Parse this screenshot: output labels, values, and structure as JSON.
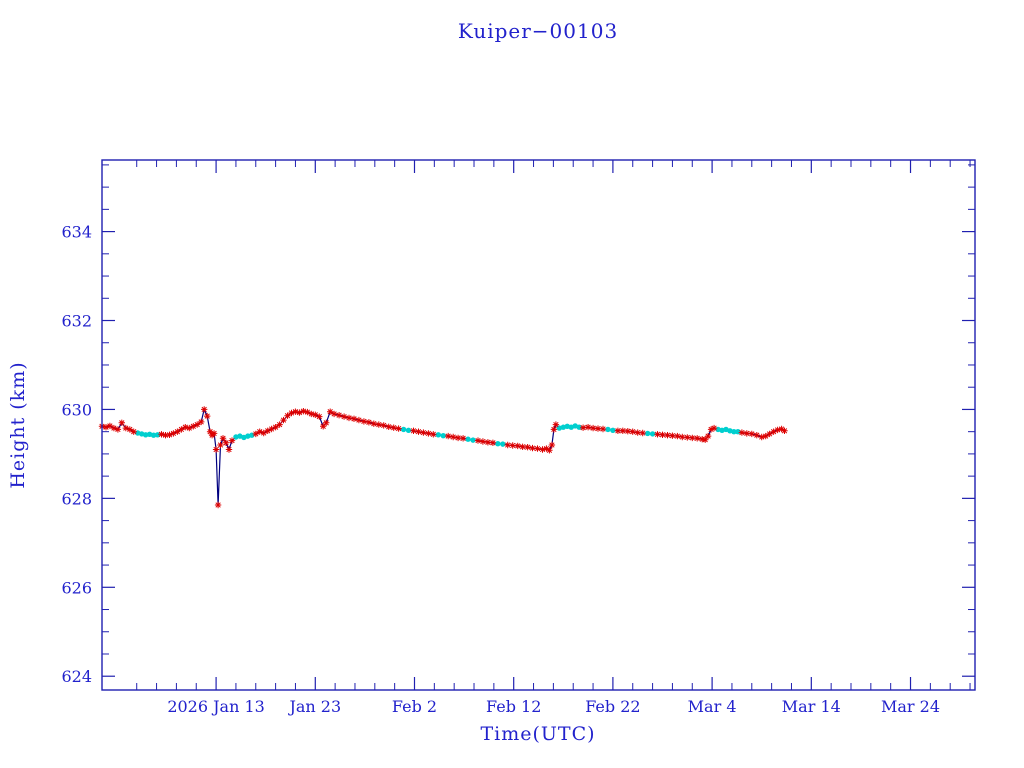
{
  "title": "Kuiper−00103",
  "colors": {
    "background": "#ffffff",
    "text": "#2222cc",
    "frame": "#2020b0",
    "line": "#000080",
    "marker_red": "#dd0000",
    "marker_cyan": "#00cfcf"
  },
  "chart_data": {
    "type": "line",
    "title": "Kuiper−00103",
    "xlabel": "Time(UTC)",
    "ylabel": "Height (km)",
    "xlim": [
      1.5,
      89.5
    ],
    "ylim": [
      623.69,
      635.61
    ],
    "grid": false,
    "legend": "none",
    "x_ticks": [
      {
        "value": 13,
        "label": "2026 Jan 13"
      },
      {
        "value": 23,
        "label": "Jan 23"
      },
      {
        "value": 33,
        "label": "Feb 2"
      },
      {
        "value": 43,
        "label": "Feb 12"
      },
      {
        "value": 53,
        "label": "Feb 22"
      },
      {
        "value": 63,
        "label": "Mar 4"
      },
      {
        "value": 73,
        "label": "Mar 14"
      },
      {
        "value": 83,
        "label": "Mar 24"
      }
    ],
    "y_ticks": [
      {
        "value": 624,
        "label": "624"
      },
      {
        "value": 626,
        "label": "626"
      },
      {
        "value": 628,
        "label": "628"
      },
      {
        "value": 630,
        "label": "630"
      },
      {
        "value": 632,
        "label": "632"
      },
      {
        "value": 634,
        "label": "634"
      }
    ],
    "series": [
      {
        "name": "height-line",
        "type": "line",
        "color": "#000080"
      },
      {
        "name": "red-asterisk-markers",
        "type": "marker",
        "color": "#dd0000"
      },
      {
        "name": "cyan-dot-markers",
        "type": "marker",
        "color": "#00cfcf"
      }
    ],
    "points_format": "[day_of_year_2026 (Jan 1 = 1), height_km, marker: r = red asterisk, c = cyan dot]",
    "points": [
      [
        1.5,
        629.62,
        "r"
      ],
      [
        1.9,
        629.6,
        "r"
      ],
      [
        2.3,
        629.63,
        "r"
      ],
      [
        2.7,
        629.58,
        "r"
      ],
      [
        3.1,
        629.55,
        "r"
      ],
      [
        3.5,
        629.7,
        "r"
      ],
      [
        3.9,
        629.58,
        "r"
      ],
      [
        4.3,
        629.55,
        "r"
      ],
      [
        4.7,
        629.5,
        "r"
      ],
      [
        5.1,
        629.47,
        "c"
      ],
      [
        5.5,
        629.45,
        "c"
      ],
      [
        5.9,
        629.43,
        "c"
      ],
      [
        6.3,
        629.44,
        "c"
      ],
      [
        6.7,
        629.42,
        "c"
      ],
      [
        7.1,
        629.43,
        "c"
      ],
      [
        7.5,
        629.44,
        "r"
      ],
      [
        7.9,
        629.42,
        "r"
      ],
      [
        8.3,
        629.43,
        "r"
      ],
      [
        8.7,
        629.46,
        "r"
      ],
      [
        9.1,
        629.5,
        "r"
      ],
      [
        9.5,
        629.55,
        "r"
      ],
      [
        9.9,
        629.6,
        "r"
      ],
      [
        10.3,
        629.58,
        "r"
      ],
      [
        10.7,
        629.62,
        "r"
      ],
      [
        11.1,
        629.66,
        "r"
      ],
      [
        11.5,
        629.72,
        "r"
      ],
      [
        11.8,
        630.0,
        "r"
      ],
      [
        12.1,
        629.85,
        "r"
      ],
      [
        12.4,
        629.5,
        "r"
      ],
      [
        12.6,
        629.42,
        "r"
      ],
      [
        12.8,
        629.46,
        "r"
      ],
      [
        13.0,
        629.1,
        "r"
      ],
      [
        13.2,
        627.85,
        "r"
      ],
      [
        13.45,
        629.2,
        "r"
      ],
      [
        13.7,
        629.35,
        "r"
      ],
      [
        14.0,
        629.25,
        "r"
      ],
      [
        14.3,
        629.1,
        "r"
      ],
      [
        14.6,
        629.3,
        "r"
      ],
      [
        15.0,
        629.38,
        "c"
      ],
      [
        15.4,
        629.4,
        "c"
      ],
      [
        15.8,
        629.37,
        "c"
      ],
      [
        16.2,
        629.4,
        "c"
      ],
      [
        16.6,
        629.42,
        "c"
      ],
      [
        17.0,
        629.45,
        "r"
      ],
      [
        17.4,
        629.5,
        "r"
      ],
      [
        17.8,
        629.47,
        "r"
      ],
      [
        18.2,
        629.52,
        "r"
      ],
      [
        18.6,
        629.56,
        "r"
      ],
      [
        19.0,
        629.6,
        "r"
      ],
      [
        19.4,
        629.66,
        "r"
      ],
      [
        19.8,
        629.76,
        "r"
      ],
      [
        20.2,
        629.86,
        "r"
      ],
      [
        20.6,
        629.92,
        "r"
      ],
      [
        21.0,
        629.95,
        "r"
      ],
      [
        21.4,
        629.93,
        "r"
      ],
      [
        21.8,
        629.96,
        "r"
      ],
      [
        22.2,
        629.94,
        "r"
      ],
      [
        22.6,
        629.9,
        "r"
      ],
      [
        23.0,
        629.88,
        "r"
      ],
      [
        23.4,
        629.84,
        "r"
      ],
      [
        23.8,
        629.62,
        "r"
      ],
      [
        24.1,
        629.7,
        "r"
      ],
      [
        24.5,
        629.95,
        "r"
      ],
      [
        24.9,
        629.9,
        "r"
      ],
      [
        25.4,
        629.87,
        "r"
      ],
      [
        25.9,
        629.84,
        "r"
      ],
      [
        26.4,
        629.81,
        "r"
      ],
      [
        26.9,
        629.79,
        "r"
      ],
      [
        27.4,
        629.76,
        "r"
      ],
      [
        27.9,
        629.73,
        "r"
      ],
      [
        28.4,
        629.71,
        "r"
      ],
      [
        28.9,
        629.68,
        "r"
      ],
      [
        29.4,
        629.66,
        "r"
      ],
      [
        29.9,
        629.64,
        "r"
      ],
      [
        30.4,
        629.61,
        "r"
      ],
      [
        30.9,
        629.59,
        "r"
      ],
      [
        31.4,
        629.57,
        "r"
      ],
      [
        31.9,
        629.55,
        "c"
      ],
      [
        32.4,
        629.53,
        "c"
      ],
      [
        32.9,
        629.52,
        "r"
      ],
      [
        33.4,
        629.5,
        "r"
      ],
      [
        33.9,
        629.48,
        "r"
      ],
      [
        34.4,
        629.46,
        "r"
      ],
      [
        34.9,
        629.44,
        "r"
      ],
      [
        35.4,
        629.43,
        "c"
      ],
      [
        35.9,
        629.41,
        "c"
      ],
      [
        36.4,
        629.4,
        "r"
      ],
      [
        36.9,
        629.38,
        "r"
      ],
      [
        37.4,
        629.36,
        "r"
      ],
      [
        37.9,
        629.35,
        "r"
      ],
      [
        38.4,
        629.33,
        "c"
      ],
      [
        38.9,
        629.31,
        "c"
      ],
      [
        39.4,
        629.3,
        "r"
      ],
      [
        39.9,
        629.28,
        "r"
      ],
      [
        40.4,
        629.26,
        "r"
      ],
      [
        40.9,
        629.25,
        "r"
      ],
      [
        41.4,
        629.23,
        "c"
      ],
      [
        41.9,
        629.22,
        "c"
      ],
      [
        42.4,
        629.2,
        "r"
      ],
      [
        42.9,
        629.19,
        "r"
      ],
      [
        43.4,
        629.18,
        "r"
      ],
      [
        43.9,
        629.16,
        "r"
      ],
      [
        44.4,
        629.15,
        "r"
      ],
      [
        44.9,
        629.13,
        "r"
      ],
      [
        45.4,
        629.12,
        "r"
      ],
      [
        45.9,
        629.1,
        "r"
      ],
      [
        46.3,
        629.12,
        "r"
      ],
      [
        46.6,
        629.08,
        "r"
      ],
      [
        46.85,
        629.2,
        "r"
      ],
      [
        47.05,
        629.55,
        "r"
      ],
      [
        47.25,
        629.66,
        "r"
      ],
      [
        47.6,
        629.58,
        "c"
      ],
      [
        48.0,
        629.6,
        "c"
      ],
      [
        48.4,
        629.62,
        "c"
      ],
      [
        48.8,
        629.6,
        "c"
      ],
      [
        49.2,
        629.63,
        "c"
      ],
      [
        49.6,
        629.6,
        "c"
      ],
      [
        50.0,
        629.59,
        "r"
      ],
      [
        50.5,
        629.6,
        "r"
      ],
      [
        51.0,
        629.58,
        "r"
      ],
      [
        51.5,
        629.57,
        "r"
      ],
      [
        52.0,
        629.56,
        "r"
      ],
      [
        52.5,
        629.55,
        "c"
      ],
      [
        53.0,
        629.53,
        "c"
      ],
      [
        53.5,
        629.52,
        "r"
      ],
      [
        54.0,
        629.52,
        "r"
      ],
      [
        54.5,
        629.51,
        "r"
      ],
      [
        55.0,
        629.5,
        "r"
      ],
      [
        55.5,
        629.48,
        "r"
      ],
      [
        56.0,
        629.47,
        "r"
      ],
      [
        56.5,
        629.46,
        "c"
      ],
      [
        57.0,
        629.45,
        "c"
      ],
      [
        57.5,
        629.44,
        "r"
      ],
      [
        58.0,
        629.43,
        "r"
      ],
      [
        58.5,
        629.42,
        "r"
      ],
      [
        59.0,
        629.41,
        "r"
      ],
      [
        59.5,
        629.4,
        "r"
      ],
      [
        60.0,
        629.38,
        "r"
      ],
      [
        60.5,
        629.37,
        "r"
      ],
      [
        61.0,
        629.36,
        "r"
      ],
      [
        61.5,
        629.35,
        "r"
      ],
      [
        62.0,
        629.33,
        "r"
      ],
      [
        62.3,
        629.32,
        "r"
      ],
      [
        62.6,
        629.4,
        "r"
      ],
      [
        62.9,
        629.55,
        "r"
      ],
      [
        63.2,
        629.58,
        "r"
      ],
      [
        63.6,
        629.55,
        "c"
      ],
      [
        64.0,
        629.53,
        "c"
      ],
      [
        64.4,
        629.55,
        "c"
      ],
      [
        64.8,
        629.52,
        "c"
      ],
      [
        65.2,
        629.5,
        "c"
      ],
      [
        65.6,
        629.5,
        "c"
      ],
      [
        66.0,
        629.48,
        "r"
      ],
      [
        66.5,
        629.46,
        "r"
      ],
      [
        67.0,
        629.45,
        "r"
      ],
      [
        67.5,
        629.42,
        "r"
      ],
      [
        68.0,
        629.38,
        "r"
      ],
      [
        68.4,
        629.4,
        "r"
      ],
      [
        68.8,
        629.45,
        "r"
      ],
      [
        69.2,
        629.5,
        "r"
      ],
      [
        69.6,
        629.54,
        "r"
      ],
      [
        70.0,
        629.56,
        "r"
      ],
      [
        70.3,
        629.52,
        "r"
      ]
    ]
  }
}
